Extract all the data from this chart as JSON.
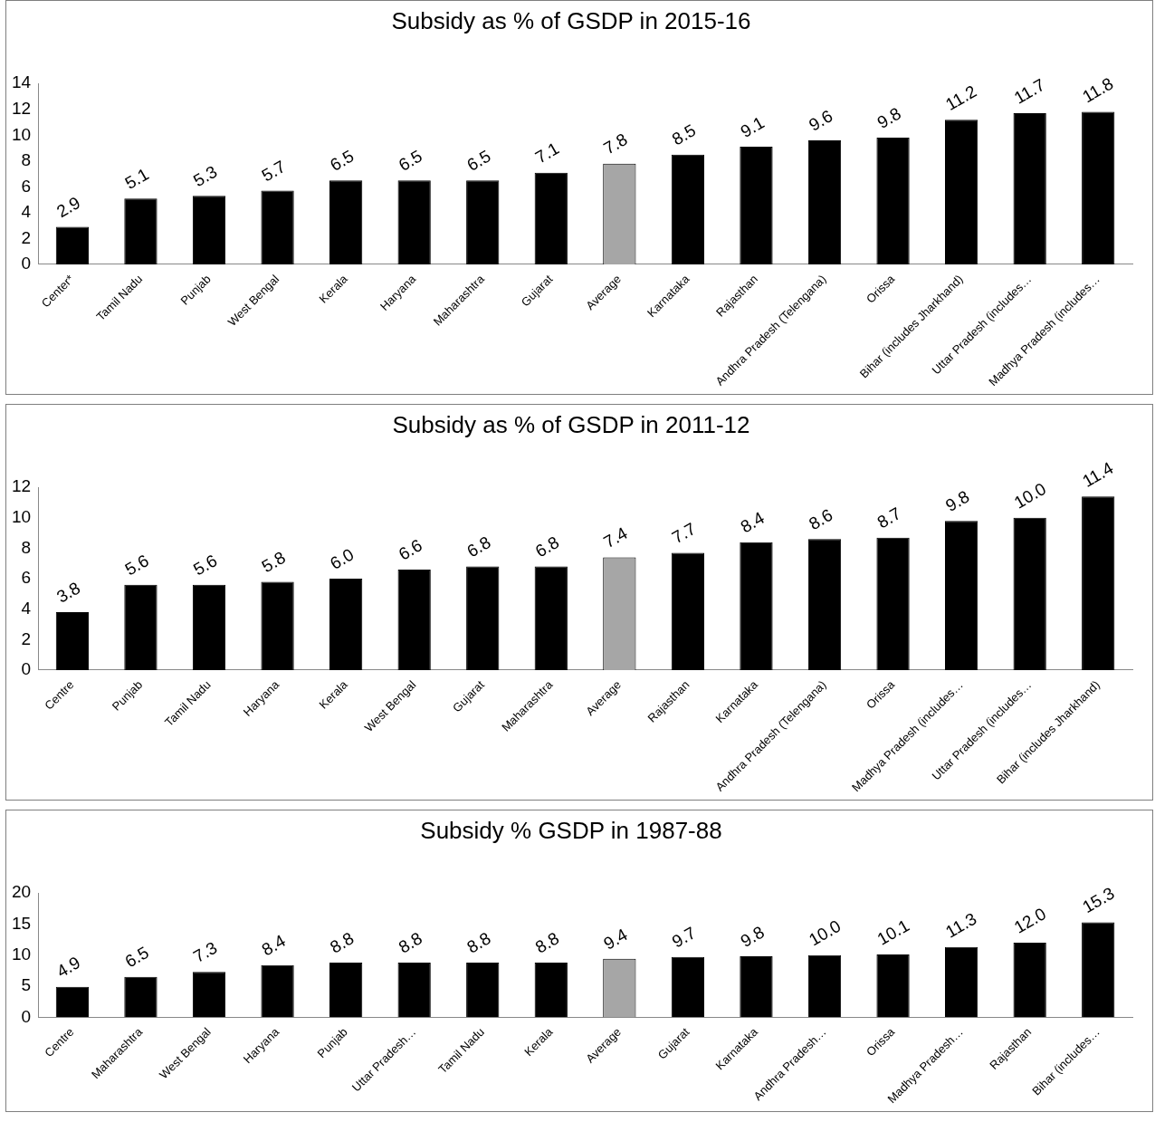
{
  "chart_data": [
    {
      "type": "bar",
      "title": "Subsidy as % of GSDP in 2015-16",
      "categories": [
        "Center*",
        "Tamil Nadu",
        "Punjab",
        "West Bengal",
        "Kerala",
        "Haryana",
        "Maharashtra",
        "Gujarat",
        "Average",
        "Karnataka",
        "Rajasthan",
        "Andhra Pradesh (Telengana)",
        "Orissa",
        "Bihar (includes Jharkhand)",
        "Uttar Pradesh (includes…",
        "Madhya Pradesh (includes…"
      ],
      "values": [
        2.9,
        5.1,
        5.3,
        5.7,
        6.5,
        6.5,
        6.5,
        7.1,
        7.8,
        8.5,
        9.1,
        9.6,
        9.8,
        11.2,
        11.7,
        11.8
      ],
      "colors": [
        "#000000",
        "#000000",
        "#000000",
        "#000000",
        "#000000",
        "#000000",
        "#000000",
        "#000000",
        "#a6a6a6",
        "#000000",
        "#000000",
        "#000000",
        "#000000",
        "#000000",
        "#000000",
        "#000000"
      ],
      "value_labels": [
        "2.9",
        "5.1",
        "5.3",
        "5.7",
        "6.5",
        "6.5",
        "6.5",
        "7.1",
        "7.8",
        "8.5",
        "9.1",
        "9.6",
        "9.8",
        "11.2",
        "11.7",
        "11.8"
      ],
      "ylim": [
        0,
        14
      ],
      "yticks": [
        0,
        2,
        4,
        6,
        8,
        10,
        12,
        14
      ],
      "grid": false,
      "legend": false
    },
    {
      "type": "bar",
      "title": "Subsidy as % of GSDP in 2011-12",
      "categories": [
        "Centre",
        "Punjab",
        "Tamil Nadu",
        "Haryana",
        "Kerala",
        "West Bengal",
        "Gujarat",
        "Maharashtra",
        "Average",
        "Rajasthan",
        "Karnataka",
        "Andhra Pradesh (Telengana)",
        "Orissa",
        "Madhya Pradesh (includes…",
        "Uttar Pradesh (includes…",
        "Bihar (includes Jharkhand)"
      ],
      "values": [
        3.8,
        5.6,
        5.6,
        5.8,
        6.0,
        6.6,
        6.8,
        6.8,
        7.4,
        7.7,
        8.4,
        8.6,
        8.7,
        9.8,
        10.0,
        11.4
      ],
      "colors": [
        "#000000",
        "#000000",
        "#000000",
        "#000000",
        "#000000",
        "#000000",
        "#000000",
        "#000000",
        "#a6a6a6",
        "#000000",
        "#000000",
        "#000000",
        "#000000",
        "#000000",
        "#000000",
        "#000000"
      ],
      "value_labels": [
        "3.8",
        "5.6",
        "5.6",
        "5.8",
        "6.0",
        "6.6",
        "6.8",
        "6.8",
        "7.4",
        "7.7",
        "8.4",
        "8.6",
        "8.7",
        "9.8",
        "10.0",
        "11.4"
      ],
      "ylim": [
        0,
        12
      ],
      "yticks": [
        0,
        2,
        4,
        6,
        8,
        10,
        12
      ],
      "grid": false,
      "legend": false
    },
    {
      "type": "bar",
      "title": "Subsidy % GSDP in 1987-88",
      "categories": [
        "Centre",
        "Maharashtra",
        "West Bengal",
        "Haryana",
        "Punjab",
        "Uttar Pradesh…",
        "Tamil Nadu",
        "Kerala",
        "Average",
        "Gujarat",
        "Karnataka",
        "Andhra Pradesh…",
        "Orissa",
        "Madhya Pradesh…",
        "Rajasthan",
        "Bihar (includes…"
      ],
      "values": [
        4.9,
        6.5,
        7.3,
        8.4,
        8.8,
        8.8,
        8.8,
        8.8,
        9.4,
        9.7,
        9.8,
        10.0,
        10.1,
        11.3,
        12.0,
        15.3
      ],
      "colors": [
        "#000000",
        "#000000",
        "#000000",
        "#000000",
        "#000000",
        "#000000",
        "#000000",
        "#000000",
        "#a6a6a6",
        "#000000",
        "#000000",
        "#000000",
        "#000000",
        "#000000",
        "#000000",
        "#000000"
      ],
      "value_labels": [
        "4.9",
        "6.5",
        "7.3",
        "8.4",
        "8.8",
        "8.8",
        "8.8",
        "8.8",
        "9.4",
        "9.7",
        "9.8",
        "10.0",
        "10.1",
        "11.3",
        "12.0",
        "15.3"
      ],
      "ylim": [
        0,
        20
      ],
      "yticks": [
        0,
        5,
        10,
        15,
        20
      ],
      "grid": false,
      "legend": false
    }
  ]
}
